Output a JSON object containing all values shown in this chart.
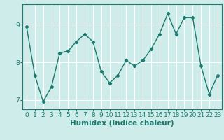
{
  "x": [
    0,
    1,
    2,
    3,
    4,
    5,
    6,
    7,
    8,
    9,
    10,
    11,
    12,
    13,
    14,
    15,
    16,
    17,
    18,
    19,
    20,
    21,
    22,
    23
  ],
  "y": [
    8.95,
    7.65,
    6.95,
    7.35,
    8.25,
    8.3,
    8.55,
    8.75,
    8.55,
    7.75,
    7.45,
    7.65,
    8.05,
    7.9,
    8.05,
    8.35,
    8.75,
    9.3,
    8.75,
    9.2,
    9.2,
    7.9,
    7.15,
    7.65
  ],
  "xlabel": "Humidex (Indice chaleur)",
  "line_color": "#1a7a6e",
  "bg_color": "#ceecea",
  "grid_color": "#ffffff",
  "tick_color": "#1a7a6e",
  "label_color": "#1a7a6e",
  "ylim": [
    6.75,
    9.55
  ],
  "yticks": [
    7,
    8,
    9
  ],
  "xlim": [
    -0.5,
    23.5
  ],
  "markersize": 2.2,
  "linewidth": 1.0,
  "xlabel_fontsize": 7.5,
  "tick_fontsize": 6.5
}
